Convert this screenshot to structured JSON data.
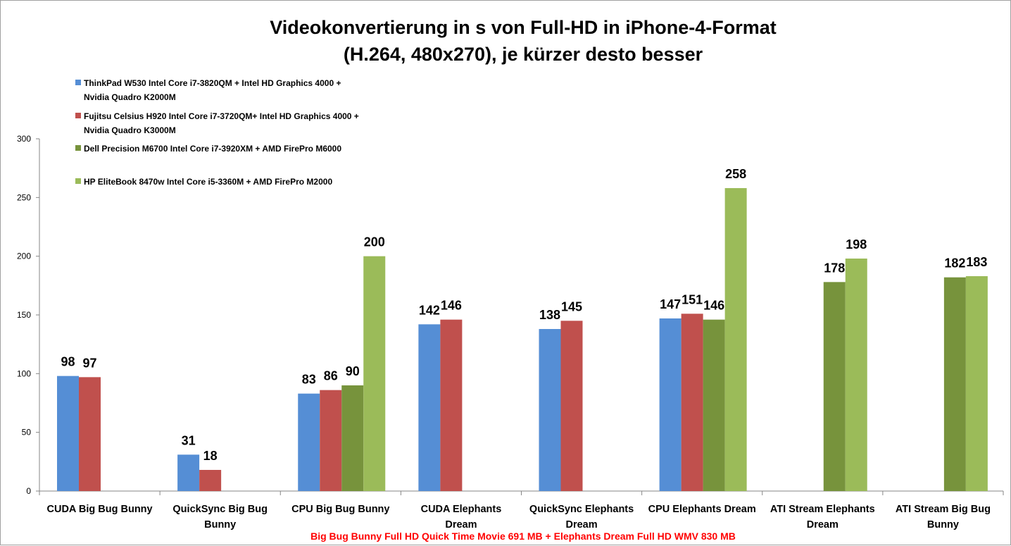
{
  "chart_data": {
    "type": "bar",
    "title": [
      "Videokonvertierung in s von Full-HD in iPhone-4-Format",
      "(H.264, 480x270), je kürzer desto besser"
    ],
    "xlabel": "",
    "ylabel": "",
    "ylim": [
      0,
      300
    ],
    "yticks": [
      0,
      50,
      100,
      150,
      200,
      250,
      300
    ],
    "grid": false,
    "legend_position": "top-left",
    "categories": [
      [
        "CUDA Big Bug Bunny"
      ],
      [
        "QuickSync Big Bug",
        "Bunny"
      ],
      [
        "CPU Big Bug Bunny"
      ],
      [
        "CUDA Elephants",
        "Dream"
      ],
      [
        "QuickSync Elephants",
        "Dream"
      ],
      [
        "CPU Elephants Dream"
      ],
      [
        "ATI Stream Elephants",
        "Dream"
      ],
      [
        "ATI Stream Big Bug",
        "Bunny"
      ]
    ],
    "series": [
      {
        "name": [
          "ThinkPad W530 Intel Core i7-3820QM + Intel HD Graphics 4000 +",
          "Nvidia Quadro K2000M"
        ],
        "color": "#558ed5",
        "values": [
          98,
          31,
          83,
          142,
          138,
          147,
          null,
          null
        ]
      },
      {
        "name": [
          "Fujitsu Celsius H920 Intel Core i7-3720QM+ Intel HD Graphics 4000 +",
          "Nvidia Quadro K3000M"
        ],
        "color": "#c0504d",
        "values": [
          97,
          18,
          86,
          146,
          145,
          151,
          null,
          null
        ]
      },
      {
        "name": [
          "Dell Precision M6700 Intel Core i7-3920XM + AMD FirePro M6000"
        ],
        "color": "#77933c",
        "values": [
          null,
          null,
          90,
          null,
          null,
          146,
          178,
          182
        ]
      },
      {
        "name": [
          "HP EliteBook 8470w Intel Core i5-3360M + AMD FirePro M2000"
        ],
        "color": "#9bbb59",
        "values": [
          null,
          null,
          200,
          null,
          null,
          258,
          198,
          183
        ]
      }
    ],
    "footnote": "Big Bug Bunny Full HD Quick Time Movie 691 MB + Elephants Dream Full HD WMV 830 MB"
  }
}
